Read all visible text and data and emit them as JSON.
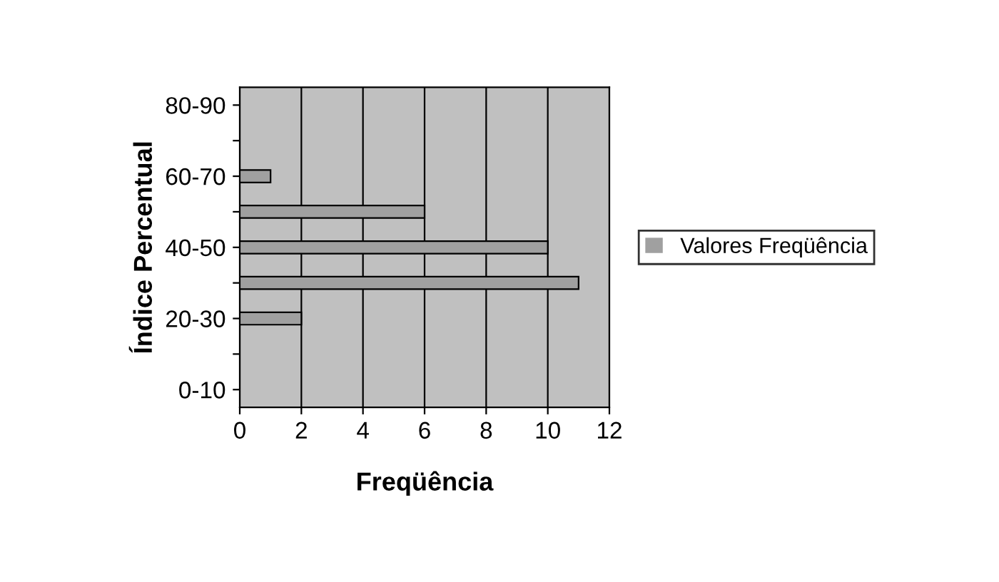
{
  "chart_data": {
    "type": "bar",
    "orientation": "horizontal",
    "xlabel": "Freqüência",
    "ylabel": "Índice Percentual",
    "categories": [
      "80-90",
      null,
      "60-70",
      null,
      "40-50",
      null,
      "20-30",
      null,
      "0-10"
    ],
    "series": [
      {
        "name": "Valores Freqüência",
        "color": "#a0a0a0",
        "values": [
          0,
          0,
          1,
          6,
          10,
          11,
          2,
          0,
          0
        ]
      }
    ],
    "xlim": [
      0,
      12
    ],
    "xticks": [
      0,
      2,
      4,
      6,
      8,
      10,
      12
    ],
    "grid": "x",
    "legend": "right"
  }
}
